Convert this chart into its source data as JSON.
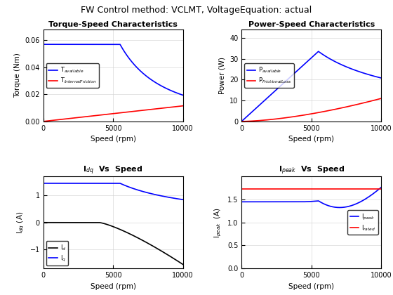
{
  "title": "FW Control method: VCLMT, VoltageEquation: actual",
  "title_fontsize": 9,
  "subplots": [
    {
      "title": "Torque-Speed Characteristics",
      "xlabel": "Speed (rpm)",
      "ylabel": "Torque (Nm)",
      "xlim": [
        0,
        10000
      ],
      "ylim": [
        0,
        0.068
      ],
      "yticks": [
        0,
        0.02,
        0.04,
        0.06
      ],
      "xticks": [
        0,
        5000,
        10000
      ],
      "legend_loc": "center left",
      "lines": [
        {
          "label": "T$_{available}$",
          "color": "blue"
        },
        {
          "label": "T$_{InternalFriction}$",
          "color": "red"
        }
      ]
    },
    {
      "title": "Power-Speed Characteristics",
      "xlabel": "Speed (rpm)",
      "ylabel": "Power (W)",
      "xlim": [
        0,
        10000
      ],
      "ylim": [
        0,
        44
      ],
      "yticks": [
        0,
        10,
        20,
        30,
        40
      ],
      "xticks": [
        0,
        5000,
        10000
      ],
      "legend_loc": "center left",
      "lines": [
        {
          "label": "P$_{available}$",
          "color": "blue"
        },
        {
          "label": "P$_{FrictionalLoss}$",
          "color": "red"
        }
      ]
    },
    {
      "title": "I$_{dq}$  Vs  Speed",
      "xlabel": "Speed (rpm)",
      "ylabel": "I$_{dq}$ (A)",
      "xlim": [
        0,
        10000
      ],
      "ylim": [
        -1.7,
        1.7
      ],
      "yticks": [
        -1,
        0,
        1
      ],
      "xticks": [
        0,
        5000,
        10000
      ],
      "legend_loc": "lower left",
      "lines": [
        {
          "label": "I$_d$",
          "color": "black"
        },
        {
          "label": "I$_q$",
          "color": "blue"
        }
      ]
    },
    {
      "title": "I$_{peak}$  Vs  Speed",
      "xlabel": "Speed (rpm)",
      "ylabel": "I$_{peak}$  (A)",
      "xlim": [
        0,
        10000
      ],
      "ylim": [
        0,
        2.0
      ],
      "yticks": [
        0,
        0.5,
        1.0,
        1.5
      ],
      "xticks": [
        0,
        5000,
        10000
      ],
      "legend_loc": "center right",
      "lines": [
        {
          "label": "I$_{peak}$",
          "color": "blue"
        },
        {
          "label": "I$_{rated}$",
          "color": "red"
        }
      ]
    }
  ]
}
